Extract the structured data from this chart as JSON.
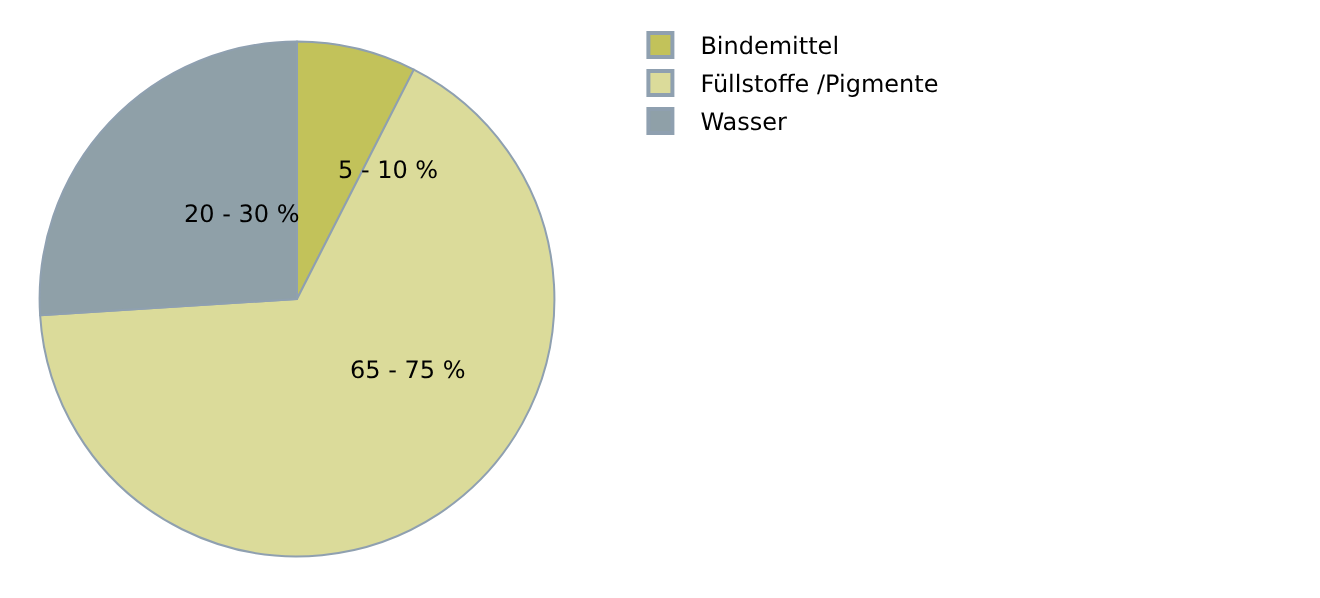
{
  "chart_data": {
    "type": "pie",
    "categories": [
      "Bindemittel",
      "Füllstoffe /Pigmente",
      "Wasser"
    ],
    "values": [
      7.5,
      66.5,
      26
    ],
    "colors": [
      "#c2c25a",
      "#dbdb9a",
      "#8fa0a8"
    ],
    "annotations": [
      "5 - 10 %",
      "65 - 75 %",
      "20 - 30 %"
    ],
    "legend": "top right"
  }
}
